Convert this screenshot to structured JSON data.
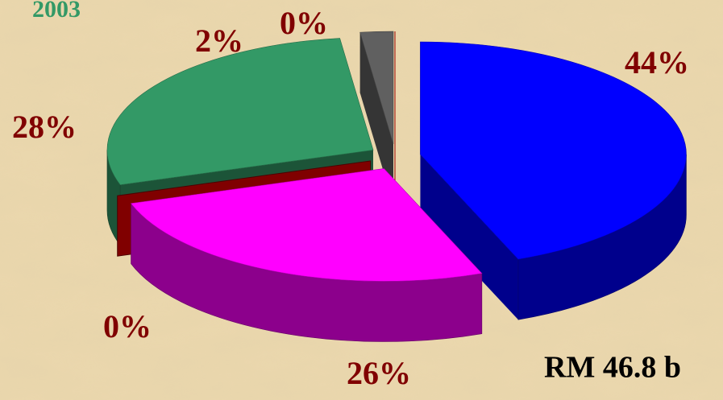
{
  "chart_data": {
    "type": "pie",
    "title": "2003",
    "values": [
      44,
      26,
      0,
      28,
      2,
      0
    ],
    "value_labels": [
      "44%",
      "26%",
      "0%",
      "28%",
      "2%",
      "0%"
    ],
    "colors": [
      "#0000ff",
      "#ff00ff",
      "#800000",
      "#339966",
      "#606060",
      "#ff0000"
    ],
    "annotation": "RM 46.8 b"
  }
}
